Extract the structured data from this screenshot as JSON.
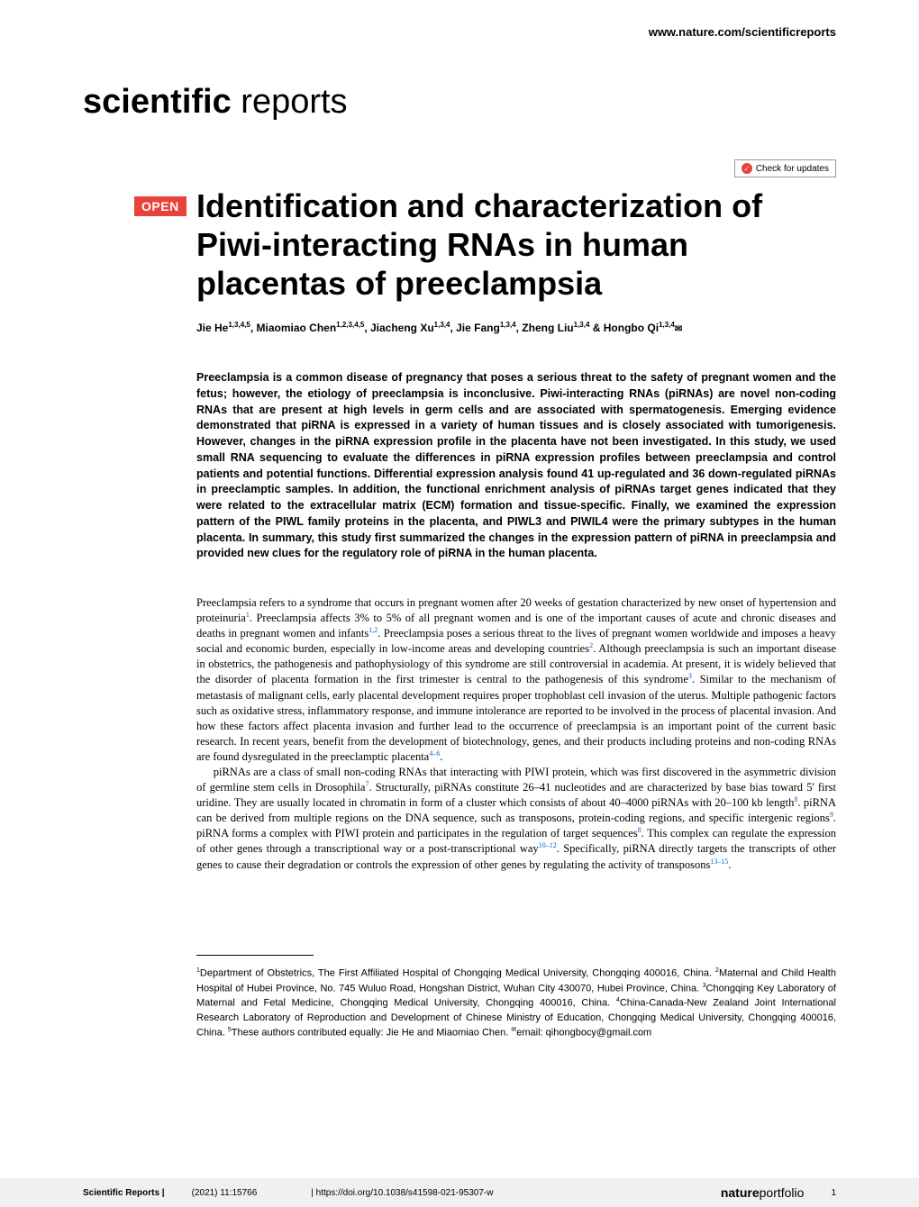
{
  "header": {
    "url": "www.nature.com/scientificreports",
    "journal_name_bold": "scientific",
    "journal_name_light": " reports",
    "check_updates": "Check for updates",
    "open_badge": "OPEN"
  },
  "title": "Identification and characterization of Piwi-interacting RNAs in human placentas of preeclampsia",
  "authors_html": "Jie He<sup>1,3,4,5</sup>, Miaomiao Chen<sup>1,2,3,4,5</sup>, Jiacheng Xu<sup>1,3,4</sup>, Jie Fang<sup>1,3,4</sup>, Zheng Liu<sup>1,3,4</sup> & Hongbo Qi<sup>1,3,4</sup><span class=\"corresp-icon\">✉</span>",
  "abstract": "Preeclampsia is a common disease of pregnancy that poses a serious threat to the safety of pregnant women and the fetus; however, the etiology of preeclampsia is inconclusive. Piwi-interacting RNAs (piRNAs) are novel non-coding RNAs that are present at high levels in germ cells and are associated with spermatogenesis. Emerging evidence demonstrated that piRNA is expressed in a variety of human tissues and is closely associated with tumorigenesis. However, changes in the piRNA expression profile in the placenta have not been investigated. In this study, we used small RNA sequencing to evaluate the differences in piRNA expression profiles between preeclampsia and control patients and potential functions. Differential expression analysis found 41 up-regulated and 36 down-regulated piRNAs in preeclamptic samples. In addition, the functional enrichment analysis of piRNAs target genes indicated that they were related to the extracellular matrix (ECM) formation and tissue-specific. Finally, we examined the expression pattern of the PIWL family proteins in the placenta, and PIWL3 and PIWIL4 were the primary subtypes in the human placenta. In summary, this study first summarized the changes in the expression pattern of piRNA in preeclampsia and provided new clues for the regulatory role of piRNA in the human placenta.",
  "body_para1": "Preeclampsia refers to a syndrome that occurs in pregnant women after 20 weeks of gestation characterized by new onset of hypertension and proteinuria<sup>1</sup>. Preeclampsia affects 3% to 5% of all pregnant women and is one of the important causes of acute and chronic diseases and deaths in pregnant women and infants<sup>1,2</sup>. Preeclampsia poses a serious threat to the lives of pregnant women worldwide and imposes a heavy social and economic burden, especially in low-income areas and developing countries<sup>2</sup>. Although preeclampsia is such an important disease in obstetrics, the pathogenesis and pathophysiology of this syndrome are still controversial in academia. At present, it is widely believed that the disorder of placenta formation in the first trimester is central to the pathogenesis of this syndrome<sup>3</sup>. Similar to the mechanism of metastasis of malignant cells, early placental development requires proper trophoblast cell invasion of the uterus. Multiple pathogenic factors such as oxidative stress, inflammatory response, and immune intolerance are reported to be involved in the process of placental invasion. And how these factors affect placenta invasion and further lead to the occurrence of preeclampsia is an important point of the current basic research. In recent years, benefit from the development of biotechnology, genes, and their products including proteins and non-coding RNAs are found dysregulated in the preeclamptic placenta<sup>4–6</sup>.",
  "body_para2": "piRNAs are a class of small non-coding RNAs that interacting with PIWI protein, which was first discovered in the asymmetric division of germline stem cells in Drosophila<sup>7</sup>. Structurally, piRNAs constitute 26–41 nucleotides and are characterized by base bias toward 5' first uridine. They are usually located in chromatin in form of a cluster which consists of about 40–4000 piRNAs with 20–100 kb length<sup>8</sup>. piRNA can be derived from multiple regions on the DNA sequence, such as transposons, protein-coding regions, and specific intergenic regions<sup>9</sup>. piRNA forms a complex with PIWI protein and participates in the regulation of target sequences<sup>8</sup>. This complex can regulate the expression of other genes through a transcriptional way or a post-transcriptional way<sup>10–12</sup>. Specifically, piRNA directly targets the transcripts of other genes to cause their degradation or controls the expression of other genes by regulating the activity of transposons<sup>13–15</sup>.",
  "affiliations": "<sup>1</sup>Department of Obstetrics, The First Affiliated Hospital of Chongqing Medical University, Chongqing 400016, China. <sup>2</sup>Maternal and Child Health Hospital of Hubei Province, No. 745 Wuluo Road, Hongshan District, Wuhan City 430070, Hubei Province, China. <sup>3</sup>Chongqing Key Laboratory of Maternal and Fetal Medicine, Chongqing Medical University, Chongqing 400016, China. <sup>4</sup>China-Canada-New Zealand Joint International Research Laboratory of Reproduction and Development of Chinese Ministry of Education, Chongqing Medical University, Chongqing 400016, China. <sup>5</sup>These authors contributed equally: Jie He and Miaomiao Chen. <sup>✉</sup>email: qihongbocy@gmail.com",
  "footer": {
    "journal": "Scientific Reports |",
    "citation": "(2021) 11:15766",
    "doi": "| https://doi.org/10.1038/s41598-021-95307-w",
    "logo_bold": "nature",
    "logo_light": "portfolio",
    "page": "1"
  },
  "colors": {
    "accent_red": "#e8423b",
    "ref_blue": "#0066cc",
    "footer_bg": "#f0f0f0"
  }
}
